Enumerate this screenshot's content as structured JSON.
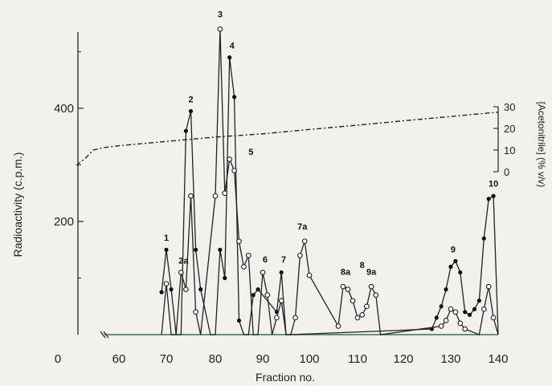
{
  "chart_data": {
    "type": "line",
    "xlabel": "Fraction no.",
    "ylabel": "Radioactivity (c.p.m.)",
    "y2label": "[Acetonitrile] (% v/v)",
    "x_ticks": [
      "0",
      "60",
      "70",
      "80",
      "90",
      "100",
      "110",
      "120",
      "130",
      "140"
    ],
    "y_ticks": [
      {
        "value": 200,
        "label": "200"
      },
      {
        "value": 400,
        "label": "400"
      }
    ],
    "y2_ticks": [
      "0",
      "10",
      "20",
      "30"
    ],
    "xlim": [
      55,
      140
    ],
    "ylim": [
      0,
      560
    ],
    "y2lim": [
      0,
      30
    ],
    "grid": false,
    "series": [
      {
        "marker": "filled",
        "x": [
          69,
          70,
          71,
          72,
          73,
          74,
          75,
          76,
          77,
          79,
          80,
          81,
          82,
          83,
          84,
          85,
          86,
          87,
          88,
          89,
          93,
          94,
          95,
          96,
          126,
          127,
          128,
          129,
          130,
          131,
          132,
          133,
          134,
          135,
          136,
          137,
          138,
          139,
          140
        ],
        "y": [
          75,
          150,
          80,
          0,
          0,
          360,
          395,
          150,
          80,
          0,
          0,
          150,
          100,
          490,
          420,
          25,
          0,
          0,
          70,
          80,
          40,
          110,
          0,
          0,
          10,
          30,
          50,
          80,
          120,
          130,
          110,
          40,
          35,
          45,
          60,
          170,
          240,
          245,
          0
        ]
      },
      {
        "marker": "open",
        "x": [
          69,
          70,
          71,
          72,
          73,
          74,
          75,
          76,
          77,
          80,
          81,
          82,
          83,
          84,
          85,
          86,
          87,
          88,
          89,
          90,
          91,
          92,
          93,
          94,
          95,
          96,
          97,
          98,
          99,
          100,
          106,
          107,
          108,
          109,
          110,
          111,
          112,
          113,
          114,
          115,
          128,
          129,
          130,
          131,
          132,
          133,
          136,
          137,
          138,
          139,
          140
        ],
        "y": [
          0,
          90,
          0,
          0,
          110,
          80,
          245,
          40,
          0,
          245,
          540,
          250,
          310,
          290,
          165,
          120,
          140,
          0,
          0,
          110,
          70,
          0,
          30,
          60,
          0,
          0,
          30,
          140,
          165,
          105,
          15,
          85,
          80,
          60,
          30,
          35,
          50,
          85,
          70,
          0,
          15,
          25,
          45,
          40,
          20,
          10,
          0,
          45,
          85,
          30,
          0
        ]
      },
      {
        "marker": "none",
        "name": "acetonitrile",
        "x": [
          55,
          56,
          57,
          58,
          60,
          65,
          70,
          80,
          90,
          100,
          110,
          120,
          130,
          140
        ],
        "y2": [
          3,
          6,
          10,
          11,
          12,
          13,
          14,
          16,
          17.5,
          19.5,
          21.5,
          23.5,
          25.5,
          27.5
        ]
      }
    ],
    "annotations": [
      {
        "text": "1",
        "x": 70,
        "y": 160
      },
      {
        "text": "2a",
        "x": 73.5,
        "y": 120
      },
      {
        "text": "2",
        "x": 75,
        "y": 405
      },
      {
        "text": "3",
        "x": 81,
        "y": 555
      },
      {
        "text": "4",
        "x": 83.5,
        "y": 500
      },
      {
        "text": "5",
        "x": 87.5,
        "y": 312
      },
      {
        "text": "6",
        "x": 90.5,
        "y": 122
      },
      {
        "text": "7",
        "x": 94.5,
        "y": 122
      },
      {
        "text": "7a",
        "x": 98.5,
        "y": 180
      },
      {
        "text": "8a",
        "x": 107.5,
        "y": 100
      },
      {
        "text": "8",
        "x": 111,
        "y": 112
      },
      {
        "text": "9a",
        "x": 113,
        "y": 100
      },
      {
        "text": "9",
        "x": 130.5,
        "y": 140
      },
      {
        "text": "10",
        "x": 139,
        "y": 256
      }
    ]
  }
}
